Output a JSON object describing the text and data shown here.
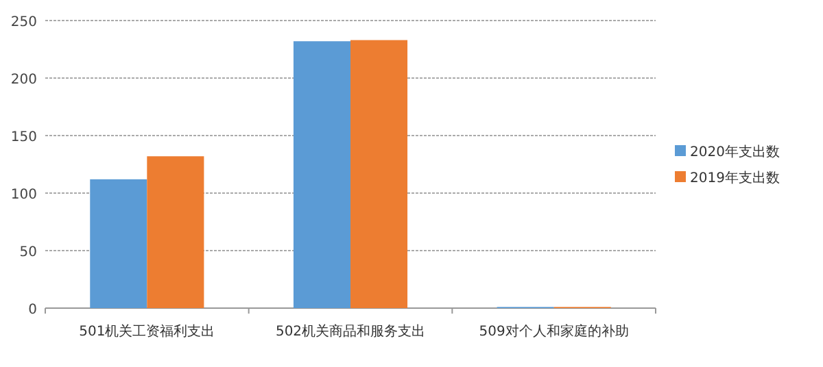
{
  "chart_data": {
    "type": "bar",
    "categories": [
      "501机关工资福利支出",
      "502机关商品和服务支出",
      "509对个人和家庭的补助"
    ],
    "series": [
      {
        "name": "2020年支出数",
        "color": "#5b9bd5",
        "values": [
          112,
          232,
          1
        ]
      },
      {
        "name": "2019年支出数",
        "color": "#ed7d31",
        "values": [
          132,
          233,
          1
        ]
      }
    ],
    "ylim": [
      0,
      250
    ],
    "yticks": [
      0,
      50,
      100,
      150,
      200,
      250
    ],
    "grid": "y",
    "legend": "right"
  }
}
